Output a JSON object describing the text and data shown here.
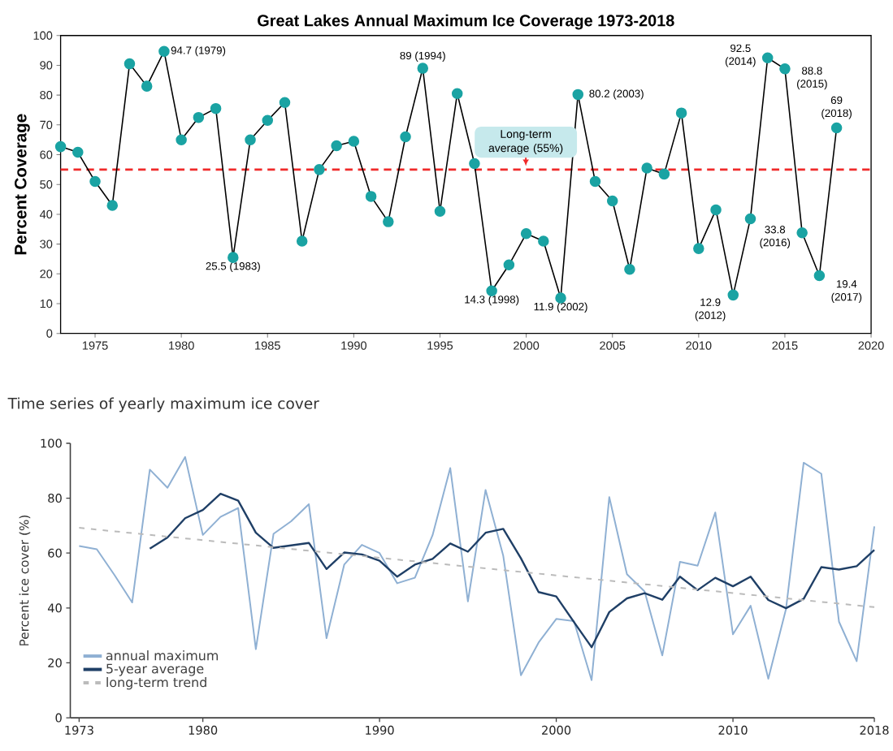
{
  "chart_data": [
    {
      "type": "line",
      "title": "Great Lakes Annual Maximum Ice Coverage 1973-2018",
      "ylabel": "Percent Coverage",
      "x": [
        1973,
        1974,
        1975,
        1976,
        1977,
        1978,
        1979,
        1980,
        1981,
        1982,
        1983,
        1984,
        1985,
        1986,
        1987,
        1988,
        1989,
        1990,
        1991,
        1992,
        1993,
        1994,
        1995,
        1996,
        1997,
        1998,
        1999,
        2000,
        2001,
        2002,
        2003,
        2004,
        2005,
        2006,
        2007,
        2008,
        2009,
        2010,
        2011,
        2012,
        2013,
        2014,
        2015,
        2016,
        2017,
        2018
      ],
      "series": [
        {
          "color": "#1aa3a3",
          "values": [
            62.7,
            60.8,
            51,
            43,
            90.5,
            83,
            94.7,
            65,
            72.5,
            75.5,
            25.5,
            65,
            71.5,
            77.5,
            31,
            55,
            63,
            64.5,
            46,
            37.5,
            66,
            89,
            41,
            80.5,
            57,
            14.3,
            23,
            33.5,
            31,
            11.9,
            80.2,
            51,
            44.5,
            21.5,
            55.5,
            53.5,
            74,
            28.5,
            41.5,
            12.9,
            38.5,
            92.5,
            88.8,
            33.8,
            19.4,
            69
          ],
          "value_labels": [
            null,
            null,
            null,
            null,
            null,
            null,
            "94.7 (1979)",
            null,
            null,
            null,
            "25.5 (1983)",
            null,
            null,
            null,
            null,
            null,
            null,
            null,
            null,
            null,
            null,
            "89 (1994)",
            null,
            null,
            null,
            "14.3 (1998)",
            null,
            null,
            null,
            "11.9 (2002)",
            "80.2 (2003)",
            null,
            null,
            null,
            null,
            null,
            null,
            null,
            null,
            "12.9 (2012)",
            null,
            "92.5 (2014)",
            "88.8 (2015)",
            "33.8 (2016)",
            "19.4 (2017)",
            "69 (2018)"
          ]
        }
      ],
      "xlim": [
        1973,
        2020
      ],
      "xticks": [
        1975,
        1980,
        1985,
        1990,
        1995,
        2000,
        2005,
        2010,
        2015,
        2020
      ],
      "ylim": [
        0,
        100
      ],
      "yticks": [
        0,
        10,
        20,
        30,
        40,
        50,
        60,
        70,
        80,
        90,
        100
      ],
      "ref_lines": [
        {
          "axis": "y",
          "value": 55,
          "label": "Long-term average (55%)",
          "color": "#f02a2a",
          "line_style": "dashed"
        }
      ],
      "marker": "circle",
      "grid": false,
      "legend": false
    },
    {
      "type": "line",
      "title": "Time series of yearly maximum ice cover",
      "ylabel": "Percent ice cover (%)",
      "series": [
        {
          "name": "annual maximum",
          "color": "#8fb0d3",
          "x": [
            1973,
            1974,
            1975,
            1976,
            1977,
            1978,
            1979,
            1980,
            1981,
            1982,
            1983,
            1984,
            1985,
            1986,
            1987,
            1988,
            1989,
            1990,
            1991,
            1992,
            1993,
            1994,
            1995,
            1996,
            1997,
            1998,
            1999,
            2000,
            2001,
            2002,
            2003,
            2004,
            2005,
            2006,
            2007,
            2008,
            2009,
            2010,
            2011,
            2012,
            2013,
            2014,
            2015,
            2016,
            2017,
            2018
          ],
          "values": [
            62.6,
            61.4,
            52,
            42,
            90.4,
            83.8,
            95,
            66.6,
            73.2,
            76.4,
            25,
            67,
            71.6,
            77.8,
            29,
            55.8,
            63,
            60,
            49,
            51,
            66.5,
            91,
            42.4,
            83,
            59,
            15.5,
            27.4,
            36,
            35.2,
            13.7,
            80.4,
            52.3,
            46,
            22.7,
            56.8,
            55.4,
            74.8,
            30.4,
            40.8,
            14.2,
            39.6,
            92.9,
            88.9,
            35,
            20.6,
            69.7
          ]
        },
        {
          "name": "5-year average",
          "color": "#1f3f66",
          "x": [
            1977,
            1978,
            1979,
            1980,
            1981,
            1982,
            1983,
            1984,
            1985,
            1986,
            1987,
            1988,
            1989,
            1990,
            1991,
            1992,
            1993,
            1994,
            1995,
            1996,
            1997,
            1998,
            1999,
            2000,
            2001,
            2002,
            2003,
            2004,
            2005,
            2006,
            2007,
            2008,
            2009,
            2010,
            2011,
            2012,
            2013,
            2014,
            2015,
            2016,
            2017,
            2018
          ],
          "values": [
            61.6,
            65.7,
            72.7,
            75.7,
            81.6,
            79.1,
            67.4,
            61.9,
            62.8,
            63.7,
            54.2,
            60.2,
            59.5,
            57.2,
            51.4,
            55.8,
            57.9,
            63.5,
            60.5,
            67.4,
            68.8,
            58.1,
            45.8,
            44.2,
            34.9,
            25.7,
            38.5,
            43.5,
            45.4,
            43,
            51.4,
            46.5,
            51,
            47.9,
            51.4,
            42.9,
            39.9,
            43.3,
            54.9,
            54,
            55.2,
            61.1
          ]
        },
        {
          "name": "long-term trend",
          "color": "#bbbbbb",
          "line_style": "dashed",
          "x": [
            1973,
            2018
          ],
          "values": [
            69.2,
            40.3
          ]
        }
      ],
      "xlim": [
        1972.5,
        2018
      ],
      "xticks": [
        1973,
        1980,
        1990,
        2000,
        2010,
        2018
      ],
      "ylim": [
        0,
        100
      ],
      "yticks": [
        0,
        20,
        40,
        60,
        80,
        100
      ],
      "marker": "none",
      "grid": false,
      "legend": "bottom left"
    }
  ]
}
